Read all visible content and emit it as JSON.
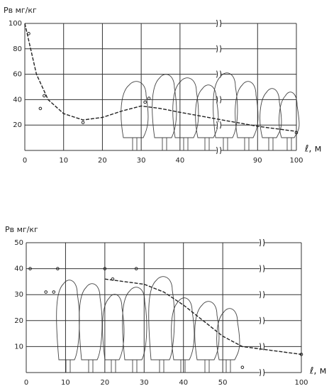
{
  "chart_data": [
    {
      "type": "line",
      "y_label": "Pв мг/кг",
      "x_label": "ℓ, м",
      "xlim": [
        0,
        100
      ],
      "xbreak": [
        50,
        80
      ],
      "ylim": [
        0,
        100
      ],
      "xticks": [
        0,
        10,
        20,
        30,
        40,
        90,
        100
      ],
      "yticks": [
        20,
        40,
        60,
        80,
        100
      ],
      "grid": true,
      "color": "#222",
      "points": {
        "x": [
          1,
          4,
          5,
          15,
          31,
          32,
          100
        ],
        "y": [
          92,
          33,
          43,
          22,
          38,
          41,
          14
        ]
      },
      "curve": {
        "x": [
          0,
          3,
          6,
          10,
          15,
          20,
          25,
          30,
          35,
          40,
          90,
          95,
          100
        ],
        "y": [
          100,
          60,
          40,
          29,
          24,
          26,
          31,
          35,
          33,
          30,
          19,
          17,
          15
        ]
      }
    },
    {
      "type": "line",
      "y_label": "Pв мг/кг",
      "x_label": "ℓ, м",
      "xlim": [
        0,
        100
      ],
      "xbreak": [
        60,
        90
      ],
      "ylim": [
        0,
        50
      ],
      "xticks": [
        0,
        10,
        20,
        30,
        40,
        50,
        100
      ],
      "yticks": [
        10,
        20,
        30,
        40,
        50
      ],
      "grid": true,
      "color": "#222",
      "points": {
        "x": [
          1,
          5,
          7,
          8,
          20,
          22,
          28,
          55,
          100
        ],
        "y": [
          40,
          31,
          31,
          40,
          40,
          36,
          40,
          2,
          7
        ]
      },
      "curve": {
        "x": [
          20,
          25,
          30,
          35,
          40,
          45,
          50,
          55,
          100
        ],
        "y": [
          36,
          35,
          34,
          31,
          26,
          20,
          14,
          10,
          7
        ]
      }
    }
  ]
}
